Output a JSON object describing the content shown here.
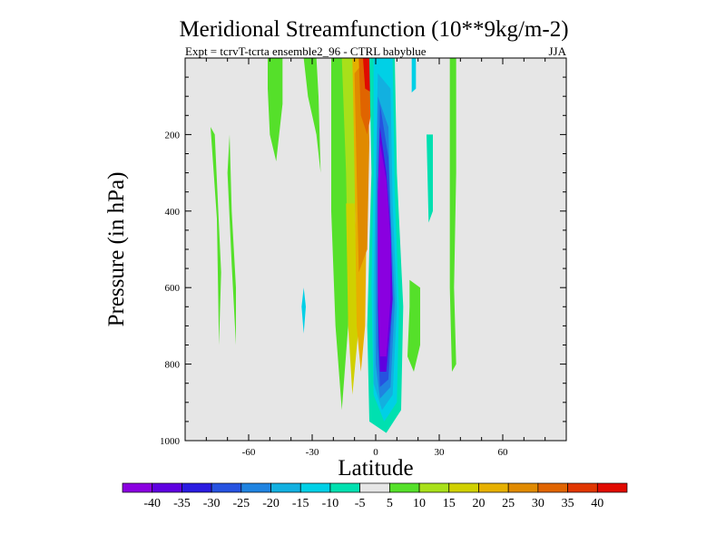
{
  "chart_data": {
    "type": "heatmap",
    "title": "Meridional Streamfunction (10**9kg/m-2)",
    "subtitle_left": "Expt = tcrvT-tcrta  ensemble2_96 - CTRL babyblue",
    "subtitle_right": "JJA",
    "xlabel": "Latitude",
    "ylabel": "Pressure (in hPa)",
    "xlim": [
      -90,
      90
    ],
    "ylim": [
      1000,
      0
    ],
    "x_ticks": [
      -60,
      -30,
      0,
      30,
      60
    ],
    "x_tick_labels": [
      "-60",
      "-30",
      "0",
      "30",
      "60"
    ],
    "y_ticks": [
      200,
      400,
      600,
      800,
      1000
    ],
    "y_tick_labels": [
      "200",
      "400",
      "600",
      "800",
      "1000"
    ],
    "background_color": "#e6e6e6",
    "colorbar": {
      "levels": [
        -40,
        -35,
        -30,
        -25,
        -20,
        -15,
        -10,
        -5,
        5,
        10,
        15,
        20,
        25,
        30,
        35,
        40
      ],
      "labels": [
        "-40",
        "-35",
        "-30",
        "-25",
        "-20",
        "-15",
        "-10",
        "-5",
        "5",
        "10",
        "15",
        "20",
        "25",
        "30",
        "35",
        "40"
      ],
      "colors": [
        "#8a00e0",
        "#5f00e0",
        "#2a1be0",
        "#2652e0",
        "#1f83e0",
        "#12b0e0",
        "#00d0e6",
        "#00e0b0",
        "#e6e6e6",
        "#55e02a",
        "#a8e01a",
        "#d0d000",
        "#e6b000",
        "#e08a00",
        "#e06400",
        "#e03600",
        "#e00a00"
      ]
    },
    "regions": [
      {
        "level": 5,
        "points": [
          [
            -78,
            180
          ],
          [
            -75,
            420
          ],
          [
            -74,
            750
          ],
          [
            -73,
            560
          ],
          [
            -76,
            200
          ]
        ]
      },
      {
        "level": 5,
        "points": [
          [
            -69,
            200
          ],
          [
            -68,
            400
          ],
          [
            -66,
            600
          ],
          [
            -66,
            750
          ],
          [
            -68,
            540
          ],
          [
            -70,
            300
          ]
        ]
      },
      {
        "level": 5,
        "points": [
          [
            -51,
            0
          ],
          [
            -44,
            0
          ],
          [
            -44,
            120
          ],
          [
            -47,
            270
          ],
          [
            -50,
            200
          ],
          [
            -51,
            80
          ]
        ]
      },
      {
        "level": 5,
        "points": [
          [
            -34,
            0
          ],
          [
            -28,
            0
          ],
          [
            -27,
            100
          ],
          [
            -26,
            300
          ],
          [
            -28,
            200
          ],
          [
            -32,
            100
          ]
        ]
      },
      {
        "level": 5,
        "points": [
          [
            -21,
            0
          ],
          [
            -15,
            0
          ],
          [
            -12,
            200
          ],
          [
            -13,
            700
          ],
          [
            -16,
            920
          ],
          [
            -19,
            700
          ],
          [
            -21,
            400
          ]
        ]
      },
      {
        "level": 10,
        "points": [
          [
            -16,
            0
          ],
          [
            -10,
            0
          ],
          [
            -9,
            200
          ],
          [
            -10,
            500
          ],
          [
            -13,
            600
          ],
          [
            -14,
            300
          ]
        ]
      },
      {
        "level": 15,
        "points": [
          [
            -14,
            380
          ],
          [
            -10,
            380
          ],
          [
            -8,
            700
          ],
          [
            -11,
            880
          ],
          [
            -13,
            700
          ]
        ]
      },
      {
        "level": 20,
        "points": [
          [
            -11,
            0
          ],
          [
            -5,
            0
          ],
          [
            -4,
            300
          ],
          [
            -5,
            700
          ],
          [
            -7,
            820
          ],
          [
            -9,
            700
          ],
          [
            -10,
            300
          ]
        ]
      },
      {
        "level": 25,
        "points": [
          [
            -10,
            40
          ],
          [
            -4,
            0
          ],
          [
            -3,
            220
          ],
          [
            -4,
            500
          ],
          [
            -8,
            560
          ],
          [
            -9,
            300
          ]
        ]
      },
      {
        "level": 30,
        "points": [
          [
            -8,
            0
          ],
          [
            -3,
            0
          ],
          [
            -2,
            140
          ],
          [
            -4,
            200
          ],
          [
            -7,
            150
          ]
        ]
      },
      {
        "level": 40,
        "points": [
          [
            -6,
            0
          ],
          [
            -2,
            0
          ],
          [
            -2,
            90
          ],
          [
            -5,
            80
          ]
        ]
      },
      {
        "level": -10,
        "points": [
          [
            -34,
            600
          ],
          [
            -33,
            650
          ],
          [
            -34,
            720
          ],
          [
            -35,
            650
          ]
        ]
      },
      {
        "level": -5,
        "points": [
          [
            -3,
            0
          ],
          [
            9,
            0
          ],
          [
            10,
            300
          ],
          [
            13,
            650
          ],
          [
            12,
            920
          ],
          [
            5,
            980
          ],
          [
            -3,
            950
          ],
          [
            -4,
            700
          ],
          [
            -2,
            300
          ]
        ]
      },
      {
        "level": -10,
        "points": [
          [
            -1,
            0
          ],
          [
            8,
            0
          ],
          [
            9,
            350
          ],
          [
            11,
            650
          ],
          [
            10,
            900
          ],
          [
            4,
            950
          ],
          [
            -1,
            880
          ],
          [
            -2,
            600
          ],
          [
            -1,
            300
          ]
        ]
      },
      {
        "level": -15,
        "points": [
          [
            1,
            40
          ],
          [
            7,
            80
          ],
          [
            8,
            380
          ],
          [
            10,
            650
          ],
          [
            8,
            880
          ],
          [
            3,
            920
          ],
          [
            -1,
            850
          ],
          [
            -1,
            600
          ],
          [
            0,
            300
          ]
        ]
      },
      {
        "level": -20,
        "points": [
          [
            1,
            100
          ],
          [
            6,
            180
          ],
          [
            7,
            400
          ],
          [
            9,
            640
          ],
          [
            7,
            860
          ],
          [
            2,
            890
          ],
          [
            0,
            800
          ],
          [
            0,
            500
          ]
        ]
      },
      {
        "level": -25,
        "points": [
          [
            2,
            120
          ],
          [
            6,
            260
          ],
          [
            7,
            420
          ],
          [
            8,
            630
          ],
          [
            6,
            840
          ],
          [
            2,
            860
          ],
          [
            1,
            750
          ],
          [
            1,
            400
          ]
        ]
      },
      {
        "level": -35,
        "points": [
          [
            2,
            180
          ],
          [
            5,
            300
          ],
          [
            7,
            450
          ],
          [
            8,
            630
          ],
          [
            5,
            820
          ],
          [
            2,
            820
          ],
          [
            1,
            650
          ],
          [
            1,
            350
          ]
        ]
      },
      {
        "level": -40,
        "points": [
          [
            2,
            220
          ],
          [
            5,
            320
          ],
          [
            7,
            480
          ],
          [
            7,
            630
          ],
          [
            5,
            780
          ],
          [
            2,
            780
          ],
          [
            1,
            600
          ],
          [
            1,
            350
          ]
        ]
      },
      {
        "level": -10,
        "points": [
          [
            17,
            0
          ],
          [
            19,
            0
          ],
          [
            19,
            80
          ],
          [
            17,
            90
          ]
        ]
      },
      {
        "level": -5,
        "points": [
          [
            24,
            200
          ],
          [
            27,
            200
          ],
          [
            27,
            400
          ],
          [
            25,
            430
          ]
        ]
      },
      {
        "level": 5,
        "points": [
          [
            16,
            580
          ],
          [
            21,
            600
          ],
          [
            21,
            750
          ],
          [
            18,
            820
          ],
          [
            15,
            780
          ],
          [
            16,
            650
          ]
        ]
      },
      {
        "level": 5,
        "points": [
          [
            35,
            0
          ],
          [
            38,
            0
          ],
          [
            38,
            300
          ],
          [
            37,
            600
          ],
          [
            38,
            800
          ],
          [
            36,
            820
          ],
          [
            35,
            600
          ]
        ]
      }
    ]
  }
}
